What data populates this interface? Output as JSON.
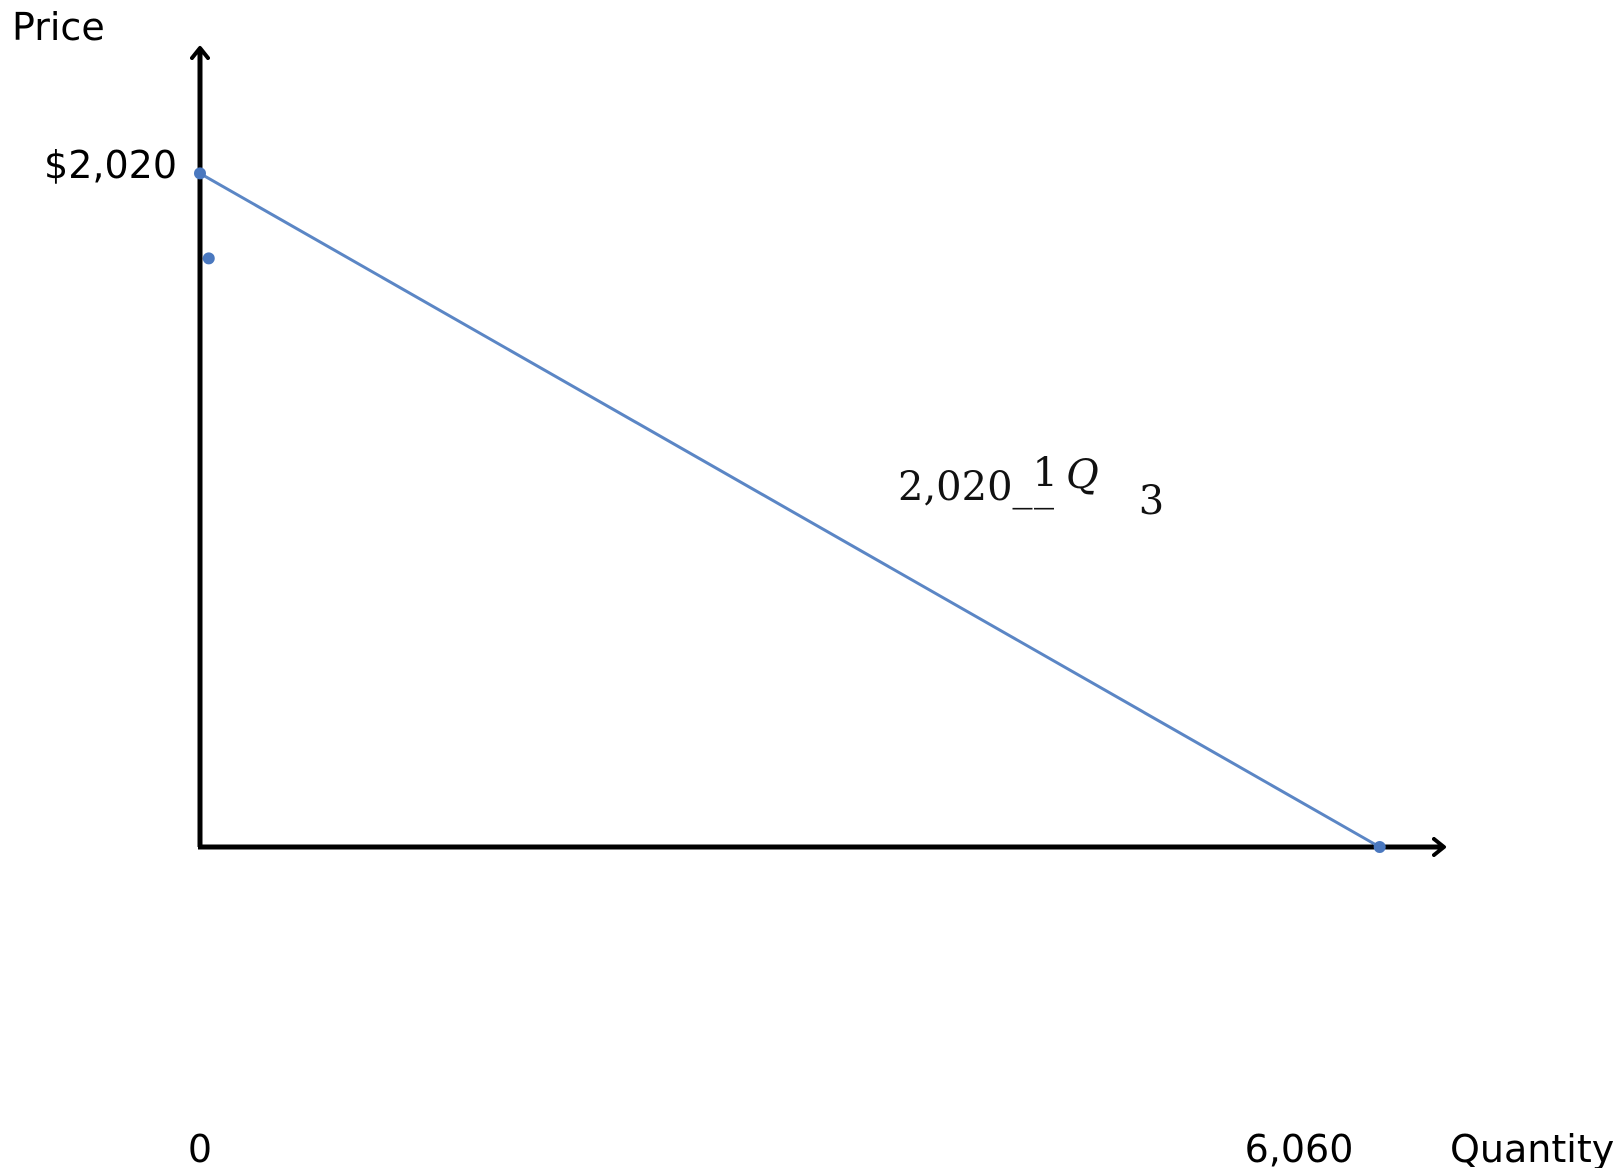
{
  "chart_data": {
    "type": "line",
    "xlabel": "Quantity",
    "ylabel": "Price",
    "x_ticks": [
      "0",
      "6,060"
    ],
    "y_ticks": [
      "$2,020"
    ],
    "xlim": [
      0,
      6380
    ],
    "ylim": [
      0,
      2390
    ],
    "grid": false,
    "series": [
      {
        "points": [
          {
            "x": 0,
            "y": 2020
          },
          {
            "x": 6060,
            "y": 0
          }
        ],
        "color": "#5b86c5"
      }
    ],
    "markers": [
      {
        "x": 0,
        "y": 2020
      },
      {
        "x": 45,
        "y": 1765
      },
      {
        "x": 6060,
        "y": 0
      }
    ],
    "annotation": {
      "parts": [
        "2,020",
        "_",
        "1",
        "_",
        "Q",
        "3"
      ]
    },
    "colors": {
      "axis": "#000000",
      "line": "#5b86c5",
      "marker": "#4a78bf"
    }
  }
}
